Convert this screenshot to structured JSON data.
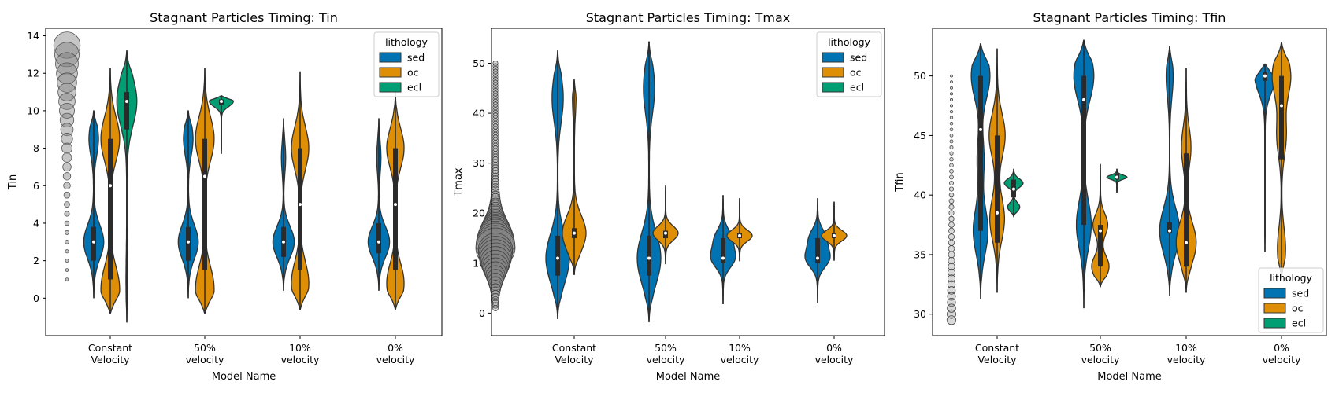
{
  "chart_data": [
    {
      "type": "violin",
      "title": "Stagnant Particles Timing: Tin",
      "xlabel": "Model Name",
      "ylabel": "Tin",
      "ylim": [
        -2.0,
        14.4
      ],
      "yticks": [
        0,
        2,
        4,
        6,
        8,
        10,
        12,
        14
      ],
      "categories": [
        [
          "Constant",
          "Velocity"
        ],
        [
          "50%",
          "velocity"
        ],
        [
          "10%",
          "velocity"
        ],
        [
          "0%",
          "velocity"
        ]
      ],
      "legend": {
        "title": "lithology",
        "entries": [
          "sed",
          "oc",
          "ecl"
        ],
        "placement": "top-right"
      },
      "size_legend_values": [
        1,
        1.5,
        2,
        2.5,
        3,
        3.5,
        4,
        4.5,
        5,
        5.5,
        6,
        6.5,
        7,
        7.5,
        8,
        8.5,
        9,
        9.5,
        10,
        10.5,
        11,
        11.5,
        12,
        12.5,
        13,
        13.5
      ],
      "series": [
        {
          "name": "sed",
          "color": "#0173b2",
          "groups": [
            {
              "category": 0,
              "min": 0.0,
              "max": 10.0,
              "q1": 2.0,
              "median": 3.0,
              "q3": 3.8,
              "modes": [
                [
                  3.0,
                  0.75
                ],
                [
                  8.5,
                  0.35
                ]
              ]
            },
            {
              "category": 1,
              "min": 0.0,
              "max": 10.0,
              "q1": 2.0,
              "median": 3.0,
              "q3": 3.8,
              "modes": [
                [
                  3.0,
                  0.75
                ],
                [
                  8.5,
                  0.35
                ]
              ]
            },
            {
              "category": 2,
              "min": 0.4,
              "max": 9.6,
              "q1": 2.2,
              "median": 3.0,
              "q3": 3.8,
              "modes": [
                [
                  3.0,
                  0.8
                ],
                [
                  7.5,
                  0.15
                ]
              ]
            },
            {
              "category": 3,
              "min": 0.4,
              "max": 9.6,
              "q1": 2.4,
              "median": 3.0,
              "q3": 4.0,
              "modes": [
                [
                  3.0,
                  0.8
                ],
                [
                  7.5,
                  0.15
                ]
              ]
            }
          ]
        },
        {
          "name": "oc",
          "color": "#de8f05",
          "groups": [
            {
              "category": 0,
              "min": -0.8,
              "max": 12.3,
              "q1": 1.0,
              "median": 6.0,
              "q3": 8.5,
              "modes": [
                [
                  0.5,
                  0.7
                ],
                [
                  8.5,
                  0.7
                ]
              ]
            },
            {
              "category": 1,
              "min": -0.8,
              "max": 12.3,
              "q1": 1.5,
              "median": 6.5,
              "q3": 8.5,
              "modes": [
                [
                  0.5,
                  0.7
                ],
                [
                  8.5,
                  0.7
                ]
              ]
            },
            {
              "category": 2,
              "min": -0.6,
              "max": 12.1,
              "q1": 1.5,
              "median": 5.0,
              "q3": 8.0,
              "modes": [
                [
                  0.8,
                  0.65
                ],
                [
                  8.0,
                  0.65
                ]
              ]
            },
            {
              "category": 3,
              "min": -0.6,
              "max": 11.0,
              "q1": 1.5,
              "median": 5.0,
              "q3": 8.0,
              "modes": [
                [
                  0.8,
                  0.65
                ],
                [
                  8.0,
                  0.65
                ]
              ]
            }
          ]
        },
        {
          "name": "ecl",
          "color": "#029e73",
          "groups": [
            {
              "category": 0,
              "min": -1.3,
              "max": 13.2,
              "q1": 9.0,
              "median": 10.5,
              "q3": 11.0,
              "modes": [
                [
                  10.5,
                  0.75
                ],
                [
                  1.0,
                  0.05
                ]
              ]
            },
            {
              "category": 1,
              "min": 7.7,
              "max": 10.8,
              "q1": 10.3,
              "median": 10.5,
              "q3": 10.6,
              "modes": [
                [
                  10.5,
                  0.9
                ]
              ]
            }
          ]
        }
      ]
    },
    {
      "type": "violin",
      "title": "Stagnant Particles Timing: Tmax",
      "xlabel": "Model Name",
      "ylabel": "Tmax",
      "ylim": [
        -4.5,
        57
      ],
      "yticks": [
        0,
        10,
        20,
        30,
        40,
        50
      ],
      "categories": [
        [
          "Constant",
          "Velocity"
        ],
        [
          "50%",
          "velocity"
        ],
        [
          "10%",
          "velocity"
        ],
        [
          "0%",
          "velocity"
        ]
      ],
      "legend": {
        "title": "lithology",
        "entries": [
          "sed",
          "oc",
          "ecl"
        ],
        "placement": "top-right"
      },
      "size_legend_range": [
        1,
        50
      ],
      "series": [
        {
          "name": "sed",
          "color": "#0173b2",
          "groups": [
            {
              "category": 0,
              "min": -1.2,
              "max": 52.5,
              "q1": 7.5,
              "median": 11.0,
              "q3": 15.5,
              "modes": [
                [
                  11.0,
                  0.75
                ],
                [
                  43.0,
                  0.35
                ]
              ]
            },
            {
              "category": 1,
              "min": -1.8,
              "max": 54.3,
              "q1": 7.5,
              "median": 11.0,
              "q3": 15.5,
              "modes": [
                [
                  11.0,
                  0.75
                ],
                [
                  45.0,
                  0.35
                ]
              ]
            },
            {
              "category": 2,
              "min": 1.8,
              "max": 23.6,
              "q1": 10.0,
              "median": 11.0,
              "q3": 15.0,
              "modes": [
                [
                  11.0,
                  0.8
                ],
                [
                  15.0,
                  0.55
                ]
              ]
            },
            {
              "category": 3,
              "min": 2.0,
              "max": 23.0,
              "q1": 10.0,
              "median": 11.0,
              "q3": 15.0,
              "modes": [
                [
                  11.0,
                  0.8
                ],
                [
                  15.0,
                  0.55
                ]
              ]
            }
          ]
        },
        {
          "name": "oc",
          "color": "#de8f05",
          "groups": [
            {
              "category": 0,
              "min": 7.7,
              "max": 46.7,
              "q1": 15.0,
              "median": 16.0,
              "q3": 17.0,
              "modes": [
                [
                  16.0,
                  0.75
                ],
                [
                  43.0,
                  0.1
                ]
              ]
            },
            {
              "category": 1,
              "min": 9.8,
              "max": 25.5,
              "q1": 15.0,
              "median": 16.0,
              "q3": 16.5,
              "modes": [
                [
                  16.0,
                  0.8
                ]
              ]
            },
            {
              "category": 2,
              "min": 10.4,
              "max": 23.0,
              "q1": 15.0,
              "median": 15.5,
              "q3": 16.0,
              "modes": [
                [
                  15.5,
                  0.8
                ]
              ]
            },
            {
              "category": 3,
              "min": 10.5,
              "max": 22.3,
              "q1": 15.0,
              "median": 15.5,
              "q3": 16.0,
              "modes": [
                [
                  15.5,
                  0.8
                ]
              ]
            }
          ]
        },
        {
          "name": "ecl",
          "color": "#029e73",
          "groups": []
        }
      ]
    },
    {
      "type": "violin",
      "title": "Stagnant Particles Timing: Tfin",
      "xlabel": "Model Name",
      "ylabel": "Tfin",
      "ylim": [
        28.2,
        54
      ],
      "yticks": [
        30,
        35,
        40,
        45,
        50
      ],
      "categories": [
        [
          "Constant",
          "Velocity"
        ],
        [
          "50%",
          "velocity"
        ],
        [
          "10%",
          "velocity"
        ],
        [
          "0%",
          "velocity"
        ]
      ],
      "legend": {
        "title": "lithology",
        "entries": [
          "sed",
          "oc",
          "ecl"
        ],
        "placement": "bottom-right"
      },
      "size_legend_range": [
        29.5,
        50
      ],
      "series": [
        {
          "name": "sed",
          "color": "#0173b2",
          "groups": [
            {
              "category": 0,
              "min": 31.3,
              "max": 52.7,
              "q1": 37.0,
              "median": 45.5,
              "q3": 50.0,
              "modes": [
                [
                  50.0,
                  0.7
                ],
                [
                  37.0,
                  0.55
                ],
                [
                  43.0,
                  0.25
                ]
              ]
            },
            {
              "category": 1,
              "min": 30.5,
              "max": 53.0,
              "q1": 37.5,
              "median": 48.0,
              "q3": 50.0,
              "modes": [
                [
                  50.0,
                  0.75
                ],
                [
                  37.5,
                  0.55
                ]
              ]
            },
            {
              "category": 2,
              "min": 31.5,
              "max": 52.5,
              "q1": 36.8,
              "median": 37.0,
              "q3": 37.7,
              "modes": [
                [
                  37.0,
                  0.75
                ],
                [
                  50.0,
                  0.25
                ]
              ]
            },
            {
              "category": 3,
              "min": 35.2,
              "max": 51.0,
              "q1": 49.6,
              "median": 50.0,
              "q3": 50.3,
              "modes": [
                [
                  50.0,
                  0.75
                ]
              ]
            }
          ]
        },
        {
          "name": "oc",
          "color": "#de8f05",
          "groups": [
            {
              "category": 0,
              "min": 31.8,
              "max": 52.3,
              "q1": 36.0,
              "median": 38.5,
              "q3": 45.0,
              "modes": [
                [
                  45.0,
                  0.6
                ],
                [
                  38.0,
                  0.55
                ]
              ]
            },
            {
              "category": 1,
              "min": 32.3,
              "max": 42.6,
              "q1": 34.0,
              "median": 37.0,
              "q3": 37.5,
              "modes": [
                [
                  34.0,
                  0.65
                ],
                [
                  37.5,
                  0.55
                ]
              ]
            },
            {
              "category": 2,
              "min": 31.8,
              "max": 50.7,
              "q1": 34.0,
              "median": 36.0,
              "q3": 43.5,
              "modes": [
                [
                  36.0,
                  0.75
                ],
                [
                  44.0,
                  0.35
                ]
              ]
            },
            {
              "category": 3,
              "min": 33.0,
              "max": 52.8,
              "q1": 43.0,
              "median": 47.5,
              "q3": 50.0,
              "modes": [
                [
                  50.0,
                  0.7
                ],
                [
                  45.0,
                  0.35
                ],
                [
                  35.5,
                  0.3
                ]
              ]
            }
          ]
        },
        {
          "name": "ecl",
          "color": "#029e73",
          "groups": [
            {
              "category": 0,
              "min": 38.2,
              "max": 42.2,
              "q1": 39.8,
              "median": 40.5,
              "q3": 41.3,
              "modes": [
                [
                  41.0,
                  0.7
                ],
                [
                  39.0,
                  0.45
                ]
              ]
            },
            {
              "category": 1,
              "min": 40.2,
              "max": 42.2,
              "q1": 41.3,
              "median": 41.5,
              "q3": 41.8,
              "modes": [
                [
                  41.5,
                  0.75
                ]
              ]
            }
          ]
        }
      ]
    }
  ]
}
